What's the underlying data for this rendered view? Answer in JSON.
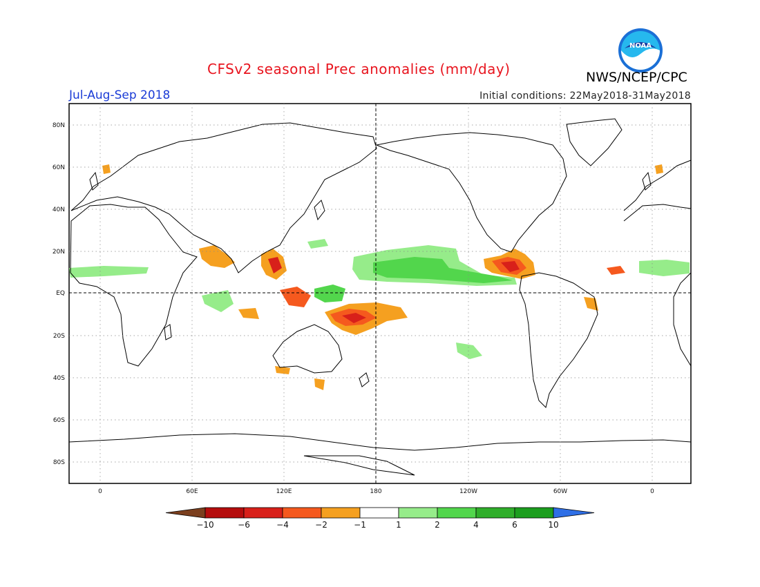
{
  "title": "CFSv2 seasonal Prec anomalies (mm/day)",
  "period": "Jul-Aug-Sep 2018",
  "initial_conditions": "Initial conditions: 22May2018-31May2018",
  "agency": "NWS/NCEP/CPC",
  "logo_text": "NOAA",
  "map": {
    "lat_labels": [
      "80N",
      "60N",
      "40N",
      "20N",
      "EQ",
      "20S",
      "40S",
      "60S",
      "80S"
    ],
    "lon_labels": [
      "0",
      "60E",
      "120E",
      "180",
      "120W",
      "60W",
      "0"
    ]
  },
  "colorbar": {
    "labels": [
      "-10",
      "-6",
      "-4",
      "-2",
      "-1",
      "1",
      "2",
      "4",
      "6",
      "10"
    ],
    "colors": [
      "#7b3f1e",
      "#b50d0d",
      "#d8201a",
      "#f5591e",
      "#f5a020",
      "#ffffff",
      "#96ec8a",
      "#52d64c",
      "#2fae2a",
      "#1c9e1e",
      "#2f6fe6"
    ]
  }
}
